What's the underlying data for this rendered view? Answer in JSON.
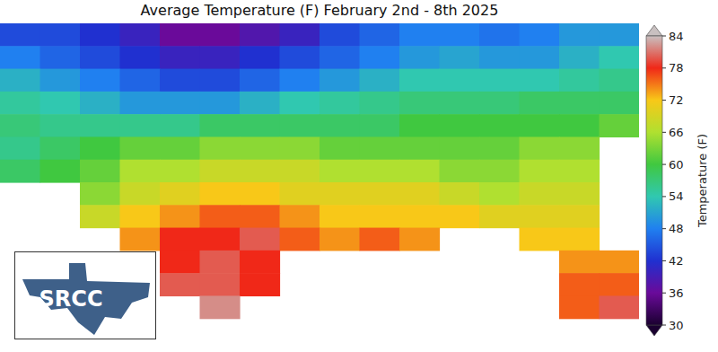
{
  "chart_data": {
    "type": "heatmap",
    "title": "Average Temperature (F) February 2nd - 8th 2025",
    "x": [
      -106,
      -104,
      -102,
      -100,
      -98,
      -96,
      -94,
      -92,
      -90,
      -88,
      -86,
      -84,
      -82,
      -80,
      -78,
      -76
    ],
    "y": [
      38.5,
      37.5,
      36.5,
      35.5,
      34.5,
      33.5,
      32.5,
      31.5,
      30.5,
      29.5,
      28.5,
      27.5,
      26.5,
      25.5
    ],
    "xlim": [
      -107,
      -75
    ],
    "ylim": [
      25,
      39
    ],
    "tick_labels": false,
    "cells": [
      [
        44,
        44,
        42,
        40,
        36,
        36,
        38,
        40,
        44,
        46,
        48,
        48,
        47,
        48,
        50,
        50
      ],
      [
        48,
        46,
        44,
        42,
        40,
        40,
        42,
        44,
        46,
        48,
        50,
        51,
        50,
        50,
        52,
        54
      ],
      [
        52,
        50,
        48,
        46,
        44,
        44,
        46,
        48,
        50,
        52,
        54,
        54,
        54,
        54,
        55,
        56
      ],
      [
        55,
        54,
        52,
        50,
        50,
        50,
        52,
        54,
        55,
        56,
        57,
        57,
        57,
        58,
        58,
        58
      ],
      [
        57,
        56,
        56,
        56,
        56,
        58,
        58,
        58,
        58,
        58,
        60,
        60,
        60,
        60,
        60,
        62
      ],
      [
        56,
        58,
        60,
        62,
        62,
        64,
        64,
        64,
        62,
        62,
        62,
        62,
        62,
        64,
        64,
        null
      ],
      [
        58,
        60,
        62,
        66,
        66,
        68,
        68,
        68,
        66,
        66,
        66,
        64,
        64,
        66,
        66,
        null
      ],
      [
        null,
        null,
        64,
        68,
        70,
        72,
        72,
        70,
        70,
        70,
        70,
        68,
        66,
        68,
        68,
        null
      ],
      [
        null,
        null,
        68,
        72,
        74,
        76,
        76,
        74,
        72,
        72,
        72,
        72,
        70,
        70,
        70,
        null
      ],
      [
        null,
        null,
        null,
        74,
        78,
        78,
        80,
        76,
        74,
        76,
        74,
        null,
        null,
        72,
        72,
        null
      ],
      [
        null,
        null,
        null,
        null,
        78,
        80,
        78,
        null,
        null,
        null,
        null,
        null,
        null,
        null,
        74,
        74
      ],
      [
        null,
        null,
        null,
        null,
        80,
        80,
        78,
        null,
        null,
        null,
        null,
        null,
        null,
        null,
        76,
        76
      ],
      [
        null,
        null,
        null,
        null,
        null,
        82,
        null,
        null,
        null,
        null,
        null,
        null,
        null,
        null,
        76,
        80
      ],
      [
        null,
        null,
        null,
        null,
        null,
        null,
        null,
        null,
        null,
        null,
        null,
        null,
        null,
        null,
        null,
        null
      ]
    ],
    "colorbar": {
      "label": "Temperature (F)",
      "range": [
        30,
        84
      ],
      "ticks": [
        30,
        36,
        42,
        48,
        54,
        60,
        66,
        72,
        78,
        84
      ]
    },
    "annotations": [
      "SRCC"
    ]
  }
}
